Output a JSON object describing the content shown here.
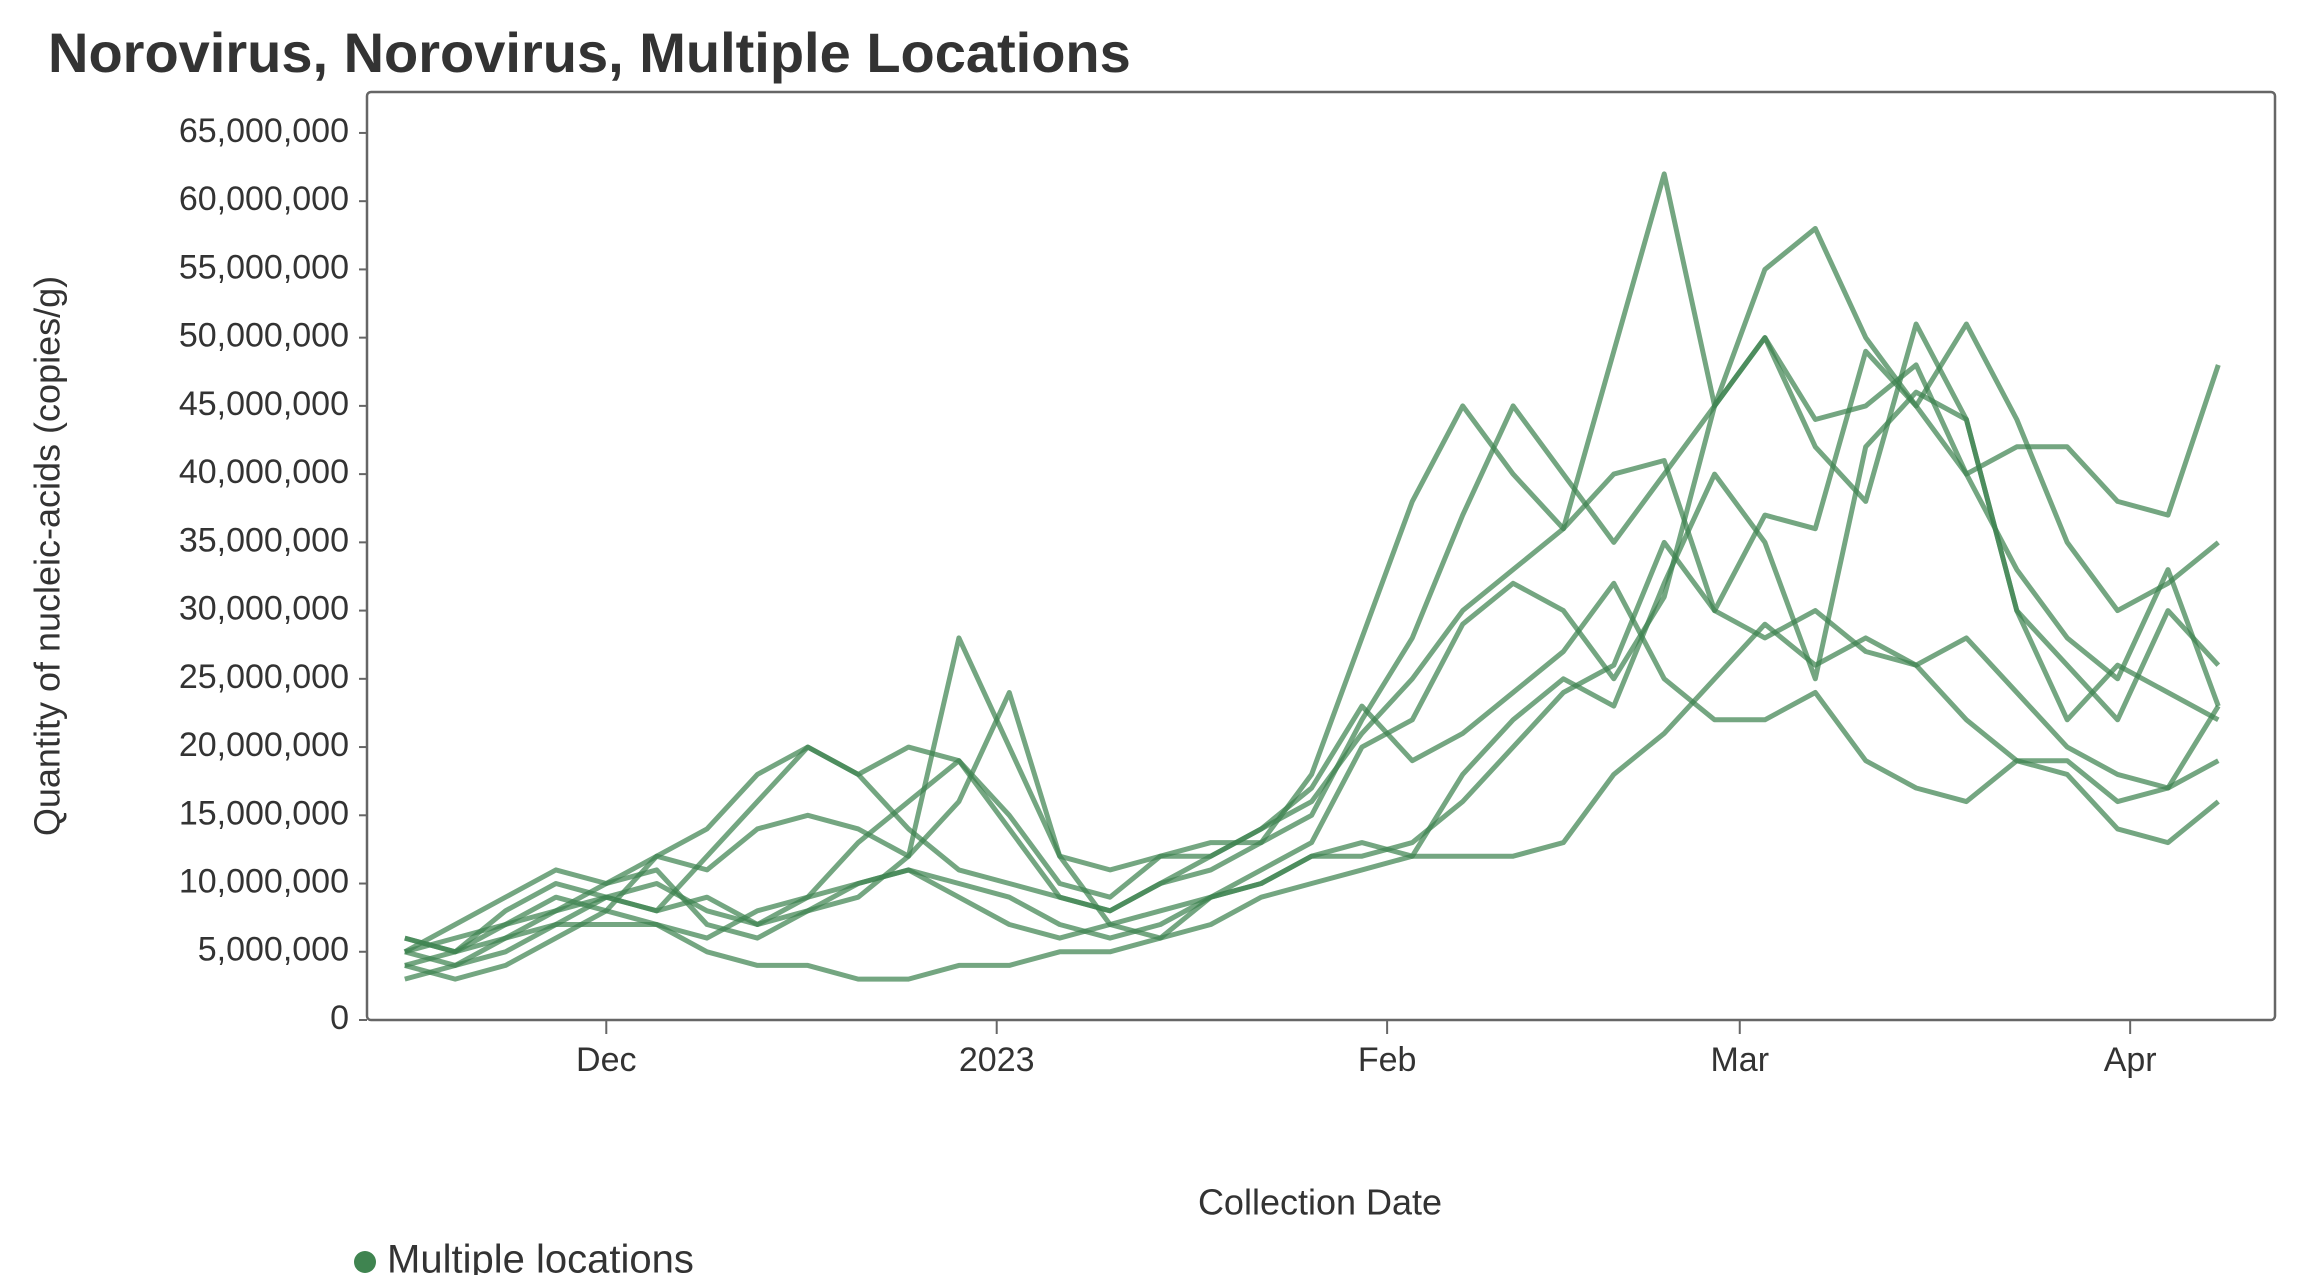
{
  "chart_data": {
    "type": "line",
    "title": "Norovirus, Norovirus, Multiple Locations",
    "y_label": "Quantity of nucleic-acids (copies/g)",
    "x_label": "Collection Date",
    "legend_label": "Multiple locations",
    "color": "#3f8450",
    "x": [
      -16,
      -12,
      -8,
      -4,
      0,
      4,
      8,
      12,
      16,
      20,
      24,
      28,
      32,
      36,
      40,
      44,
      48,
      52,
      56,
      60,
      64,
      68,
      72,
      76,
      80,
      84,
      88,
      92,
      96,
      100,
      104,
      108,
      112,
      116,
      120,
      124,
      128
    ],
    "xlim": [
      -19,
      132.5
    ],
    "xticks": [
      {
        "value": 0,
        "label": "Dec"
      },
      {
        "value": 31,
        "label": "2023"
      },
      {
        "value": 62,
        "label": "Feb"
      },
      {
        "value": 90,
        "label": "Mar"
      },
      {
        "value": 121,
        "label": "Apr"
      }
    ],
    "ylim": [
      0,
      68000000
    ],
    "yticks": [
      {
        "value": 0,
        "label": "0"
      },
      {
        "value": 5000000,
        "label": "5,000,000"
      },
      {
        "value": 10000000,
        "label": "10,000,000"
      },
      {
        "value": 15000000,
        "label": "15,000,000"
      },
      {
        "value": 20000000,
        "label": "20,000,000"
      },
      {
        "value": 25000000,
        "label": "25,000,000"
      },
      {
        "value": 30000000,
        "label": "30,000,000"
      },
      {
        "value": 35000000,
        "label": "35,000,000"
      },
      {
        "value": 40000000,
        "label": "40,000,000"
      },
      {
        "value": 45000000,
        "label": "45,000,000"
      },
      {
        "value": 50000000,
        "label": "50,000,000"
      },
      {
        "value": 55000000,
        "label": "55,000,000"
      },
      {
        "value": 60000000,
        "label": "60,000,000"
      },
      {
        "value": 65000000,
        "label": "65,000,000"
      }
    ],
    "series": [
      {
        "values": [
          5000000,
          6000000,
          7000000,
          9000000,
          8000000,
          12000000,
          11000000,
          14000000,
          15000000,
          14000000,
          12000000,
          28000000,
          20000000,
          12000000,
          11000000,
          12000000,
          13000000,
          13000000,
          15000000,
          22000000,
          28000000,
          37000000,
          45000000,
          40000000,
          35000000,
          40000000,
          45000000,
          55000000,
          58000000,
          50000000,
          45000000,
          40000000,
          42000000,
          42000000,
          38000000,
          37000000,
          48000000
        ]
      },
      {
        "values": [
          4000000,
          5000000,
          8000000,
          10000000,
          9000000,
          8000000,
          12000000,
          16000000,
          20000000,
          18000000,
          20000000,
          19000000,
          15000000,
          10000000,
          9000000,
          12000000,
          12000000,
          14000000,
          16000000,
          21000000,
          25000000,
          30000000,
          33000000,
          36000000,
          49000000,
          62000000,
          45000000,
          50000000,
          44000000,
          45000000,
          48000000,
          40000000,
          33000000,
          28000000,
          25000000,
          33000000,
          23000000
        ]
      },
      {
        "values": [
          6000000,
          5000000,
          6000000,
          8000000,
          10000000,
          11000000,
          7000000,
          6000000,
          8000000,
          9000000,
          12000000,
          16000000,
          24000000,
          12000000,
          7000000,
          6000000,
          9000000,
          11000000,
          13000000,
          20000000,
          22000000,
          29000000,
          32000000,
          30000000,
          25000000,
          31000000,
          45000000,
          50000000,
          42000000,
          38000000,
          51000000,
          44000000,
          30000000,
          26000000,
          22000000,
          30000000,
          26000000
        ]
      },
      {
        "values": [
          4000000,
          3000000,
          4000000,
          6000000,
          8000000,
          7000000,
          5000000,
          4000000,
          4000000,
          3000000,
          3000000,
          4000000,
          4000000,
          5000000,
          5000000,
          6000000,
          7000000,
          9000000,
          10000000,
          11000000,
          12000000,
          12000000,
          12000000,
          13000000,
          18000000,
          21000000,
          25000000,
          29000000,
          26000000,
          28000000,
          26000000,
          22000000,
          19000000,
          18000000,
          14000000,
          13000000,
          16000000
        ]
      },
      {
        "values": [
          5000000,
          4000000,
          5000000,
          7000000,
          9000000,
          8000000,
          9000000,
          7000000,
          8000000,
          10000000,
          11000000,
          9000000,
          7000000,
          6000000,
          7000000,
          8000000,
          9000000,
          10000000,
          12000000,
          12000000,
          13000000,
          16000000,
          20000000,
          24000000,
          26000000,
          35000000,
          30000000,
          28000000,
          30000000,
          27000000,
          26000000,
          28000000,
          24000000,
          20000000,
          18000000,
          17000000,
          19000000
        ]
      },
      {
        "values": [
          6000000,
          5000000,
          7000000,
          8000000,
          9000000,
          10000000,
          8000000,
          7000000,
          9000000,
          13000000,
          16000000,
          19000000,
          14000000,
          9000000,
          8000000,
          10000000,
          12000000,
          14000000,
          17000000,
          23000000,
          19000000,
          21000000,
          24000000,
          27000000,
          32000000,
          25000000,
          22000000,
          22000000,
          24000000,
          19000000,
          17000000,
          16000000,
          19000000,
          19000000,
          16000000,
          17000000,
          23000000
        ]
      },
      {
        "values": [
          3000000,
          4000000,
          6000000,
          7000000,
          7000000,
          7000000,
          6000000,
          8000000,
          9000000,
          10000000,
          11000000,
          10000000,
          9000000,
          7000000,
          6000000,
          7000000,
          9000000,
          10000000,
          12000000,
          13000000,
          12000000,
          18000000,
          22000000,
          25000000,
          23000000,
          32000000,
          40000000,
          35000000,
          25000000,
          42000000,
          46000000,
          44000000,
          30000000,
          22000000,
          26000000,
          24000000,
          22000000
        ]
      },
      {
        "values": [
          5000000,
          7000000,
          9000000,
          11000000,
          10000000,
          12000000,
          14000000,
          18000000,
          20000000,
          18000000,
          14000000,
          11000000,
          10000000,
          9000000,
          8000000,
          10000000,
          11000000,
          13000000,
          18000000,
          28000000,
          38000000,
          45000000,
          40000000,
          36000000,
          40000000,
          41000000,
          30000000,
          37000000,
          36000000,
          49000000,
          45000000,
          51000000,
          44000000,
          35000000,
          30000000,
          32000000,
          35000000
        ]
      }
    ]
  }
}
